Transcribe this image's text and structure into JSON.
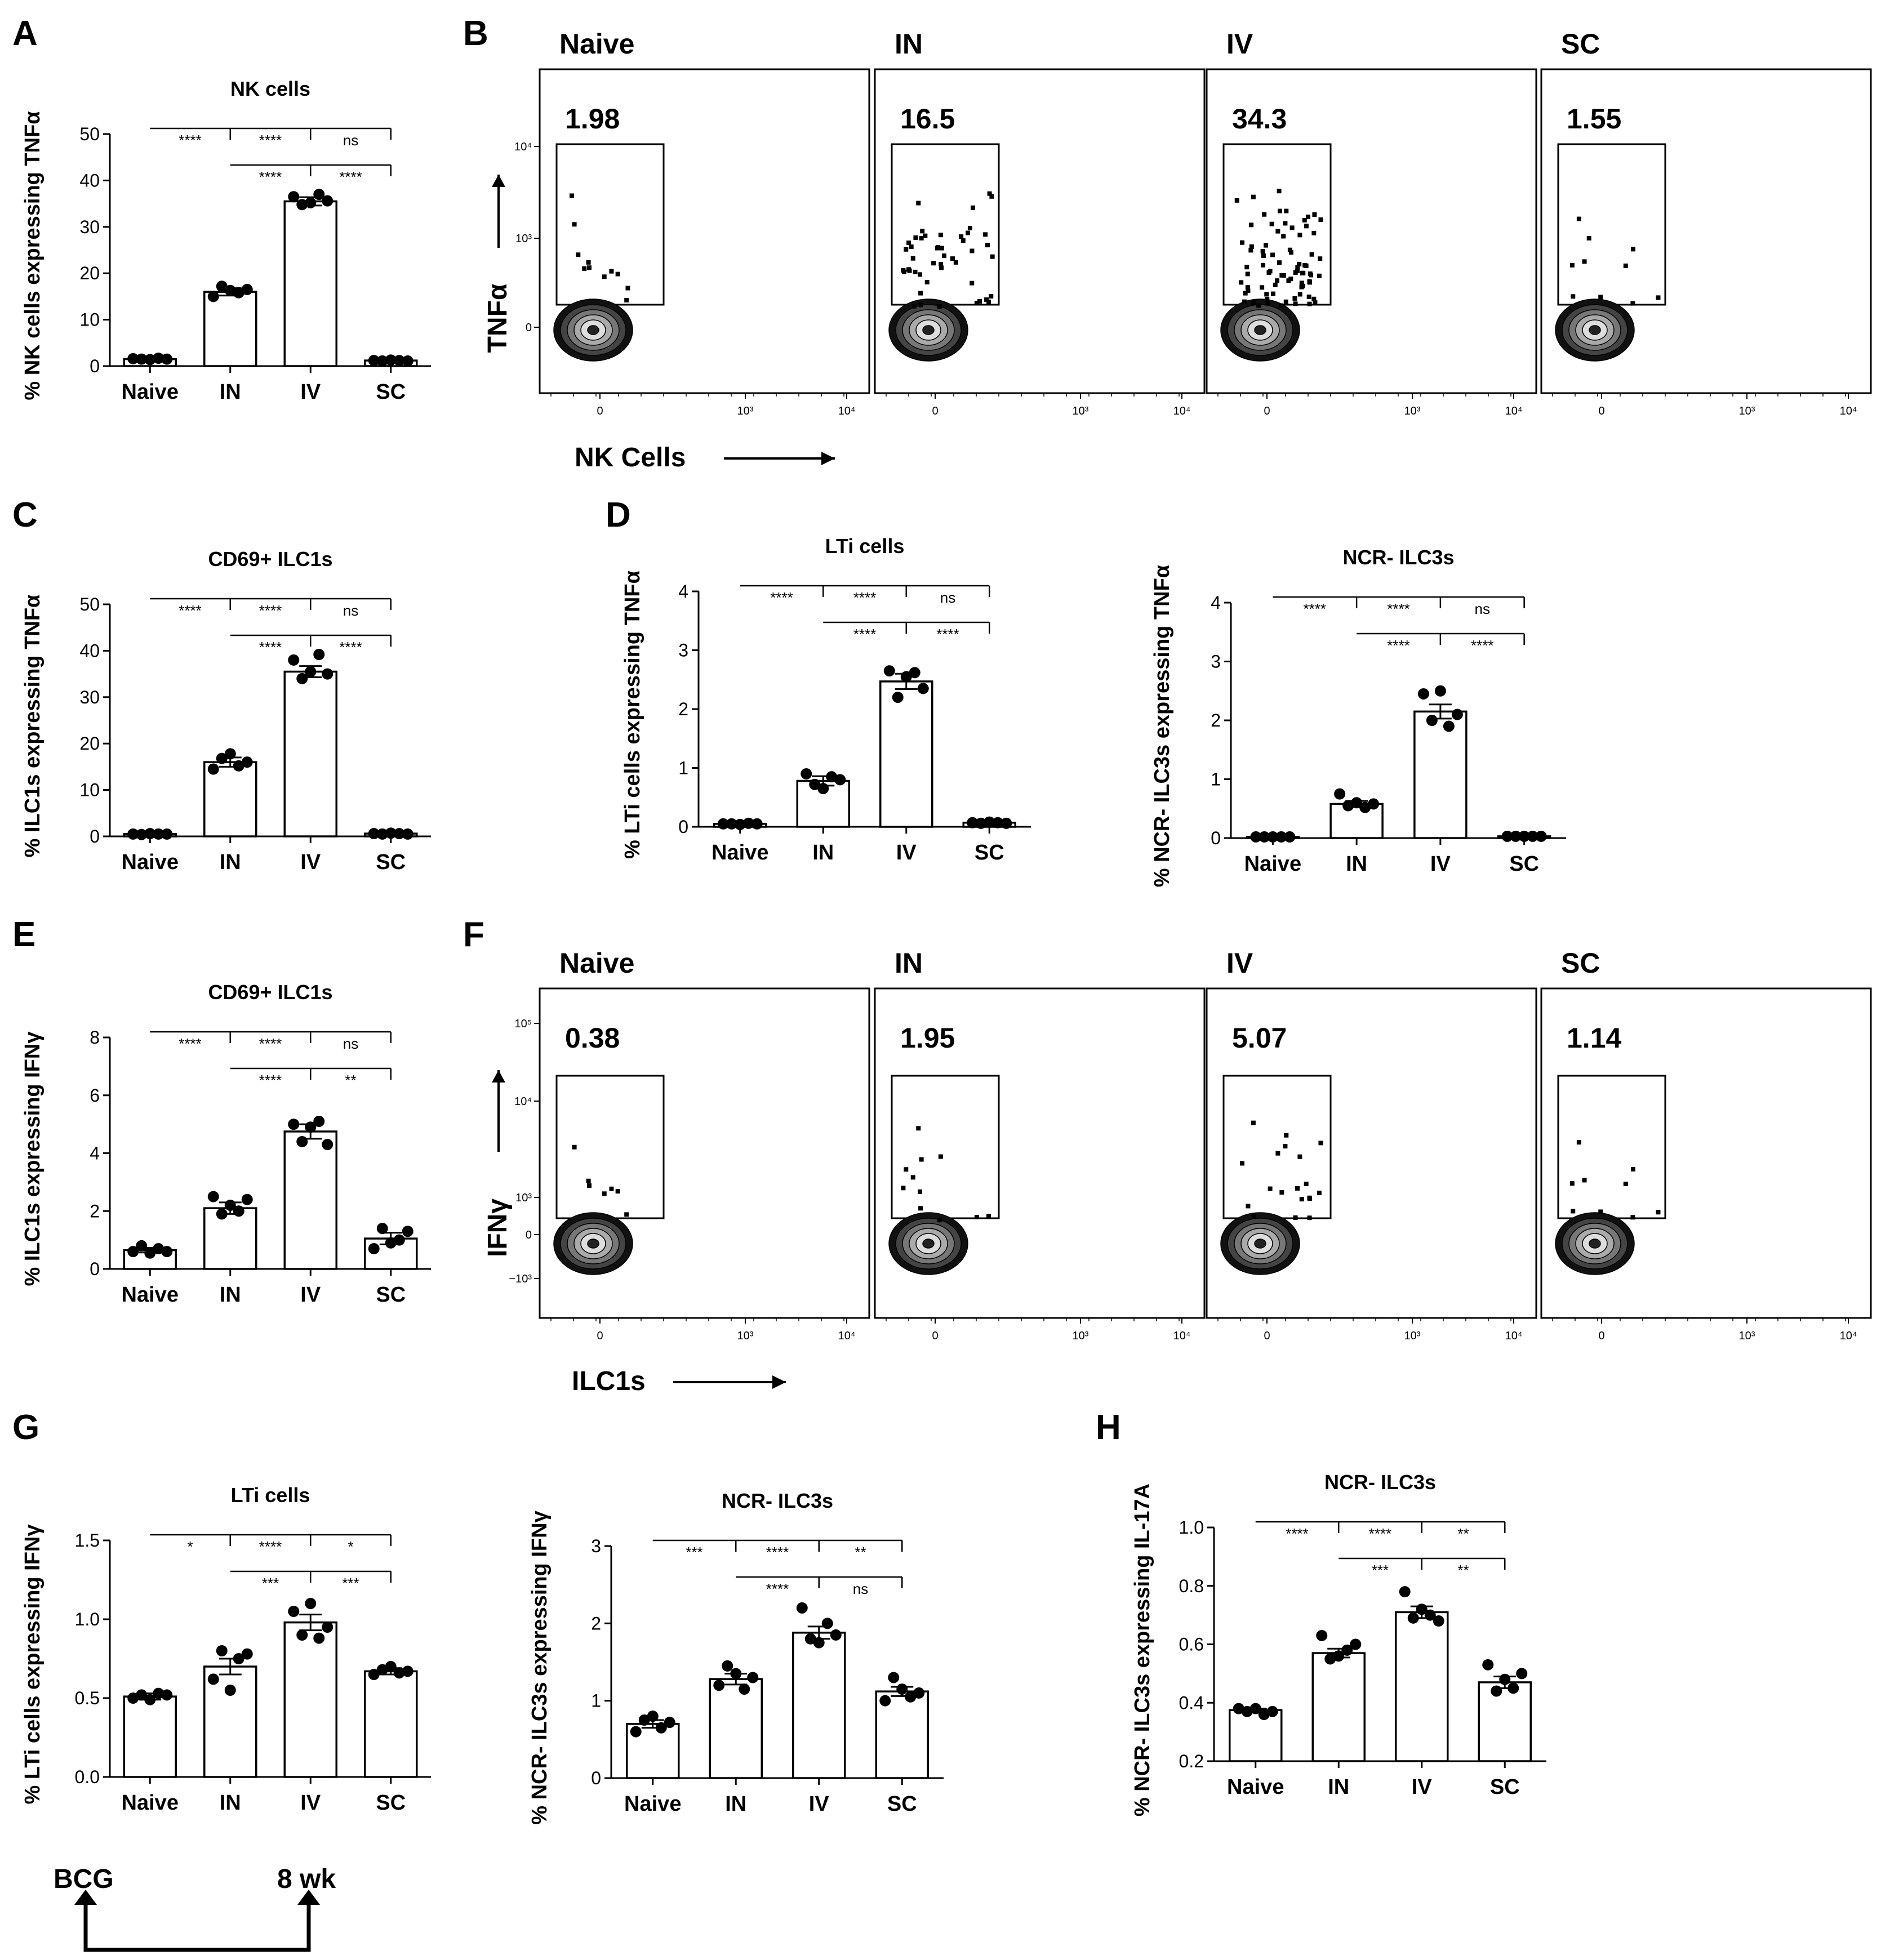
{
  "panels": {
    "A": "A",
    "B": "B",
    "C": "C",
    "D": "D",
    "E": "E",
    "F": "F",
    "G": "G",
    "H": "H"
  },
  "chart_data": [
    {
      "id": "A",
      "type": "bar",
      "title": "NK cells",
      "ylabel": "% NK cells expressing TNFα",
      "categories": [
        "Naive",
        "IN",
        "IV",
        "SC"
      ],
      "values": [
        1.5,
        16.0,
        35.5,
        1.2
      ],
      "sem": [
        0.2,
        0.8,
        0.9,
        0.1
      ],
      "points": [
        [
          1.6,
          1.5,
          1.4,
          1.7,
          1.5
        ],
        [
          15.0,
          17.2,
          16.3,
          15.8,
          16.5
        ],
        [
          36.5,
          34.8,
          35.2,
          37.0,
          35.6
        ],
        [
          1.2,
          1.1,
          1.3,
          1.2,
          1.1
        ]
      ],
      "ylim": [
        0,
        50
      ],
      "yticks": [
        "0",
        "10",
        "20",
        "30",
        "40",
        "50"
      ],
      "significance": [
        {
          "from": 0,
          "to": 3,
          "labels": [
            "****",
            "****",
            "ns"
          ]
        },
        {
          "from": 1,
          "to": 3,
          "labels": [
            "****",
            "****"
          ]
        }
      ]
    },
    {
      "id": "C",
      "type": "bar",
      "title": "CD69+ ILC1s",
      "ylabel": "% ILC1s expressing TNFα",
      "categories": [
        "Naive",
        "IN",
        "IV",
        "SC"
      ],
      "values": [
        0.5,
        16.0,
        35.5,
        0.6
      ],
      "sem": [
        0.1,
        1.0,
        1.2,
        0.1
      ],
      "points": [
        [
          0.5,
          0.4,
          0.6,
          0.5,
          0.5
        ],
        [
          14.5,
          16.8,
          17.8,
          15.2,
          16.0
        ],
        [
          38.0,
          34.0,
          35.5,
          39.2,
          35.0
        ],
        [
          0.6,
          0.5,
          0.7,
          0.6,
          0.5
        ]
      ],
      "ylim": [
        0,
        50
      ],
      "yticks": [
        "0",
        "10",
        "20",
        "30",
        "40",
        "50"
      ],
      "significance": [
        {
          "from": 0,
          "to": 3,
          "labels": [
            "****",
            "****",
            "ns"
          ]
        },
        {
          "from": 1,
          "to": 3,
          "labels": [
            "****",
            "****"
          ]
        }
      ]
    },
    {
      "id": "D1",
      "type": "bar",
      "title": "LTi cells",
      "ylabel": "% LTi cells expressing TNFα",
      "categories": [
        "Naive",
        "IN",
        "IV",
        "SC"
      ],
      "values": [
        0.05,
        0.78,
        2.47,
        0.07
      ],
      "sem": [
        0.01,
        0.08,
        0.13,
        0.01
      ],
      "points": [
        [
          0.05,
          0.05,
          0.04,
          0.06,
          0.05
        ],
        [
          0.9,
          0.72,
          0.65,
          0.85,
          0.8
        ],
        [
          2.65,
          2.2,
          2.55,
          2.62,
          2.35
        ],
        [
          0.07,
          0.06,
          0.08,
          0.07,
          0.06
        ]
      ],
      "ylim": [
        0,
        4
      ],
      "yticks": [
        "0",
        "1",
        "2",
        "3",
        "4"
      ],
      "significance": [
        {
          "from": 0,
          "to": 3,
          "labels": [
            "****",
            "****",
            "ns"
          ]
        },
        {
          "from": 1,
          "to": 3,
          "labels": [
            "****",
            "****"
          ]
        }
      ]
    },
    {
      "id": "D2",
      "type": "bar",
      "title": "NCR- ILC3s",
      "ylabel": "% NCR- ILC3s expressing TNFα",
      "categories": [
        "Naive",
        "IN",
        "IV",
        "SC"
      ],
      "values": [
        0.02,
        0.58,
        2.15,
        0.03
      ],
      "sem": [
        0.01,
        0.05,
        0.12,
        0.01
      ],
      "points": [
        [
          0.02,
          0.02,
          0.02,
          0.02,
          0.02
        ],
        [
          0.75,
          0.55,
          0.6,
          0.52,
          0.58
        ],
        [
          2.45,
          2.0,
          2.5,
          1.9,
          2.1
        ],
        [
          0.03,
          0.03,
          0.03,
          0.03,
          0.03
        ]
      ],
      "ylim": [
        0,
        4
      ],
      "yticks": [
        "0",
        "1",
        "2",
        "3",
        "4"
      ],
      "significance": [
        {
          "from": 0,
          "to": 3,
          "labels": [
            "****",
            "****",
            "ns"
          ]
        },
        {
          "from": 1,
          "to": 3,
          "labels": [
            "****",
            "****"
          ]
        }
      ]
    },
    {
      "id": "E",
      "type": "bar",
      "title": "CD69+ ILC1s",
      "ylabel": "% ILC1s expressing IFNγ",
      "categories": [
        "Naive",
        "IN",
        "IV",
        "SC"
      ],
      "values": [
        0.65,
        2.1,
        4.75,
        1.05
      ],
      "sem": [
        0.08,
        0.2,
        0.25,
        0.2
      ],
      "points": [
        [
          0.6,
          0.8,
          0.55,
          0.7,
          0.6
        ],
        [
          2.5,
          1.9,
          2.2,
          2.0,
          2.4
        ],
        [
          5.0,
          4.4,
          4.9,
          5.1,
          4.3
        ],
        [
          0.7,
          1.4,
          0.9,
          1.0,
          1.3
        ]
      ],
      "ylim": [
        0,
        8
      ],
      "yticks": [
        "0",
        "2",
        "4",
        "6",
        "8"
      ],
      "significance": [
        {
          "from": 0,
          "to": 3,
          "labels": [
            "****",
            "****",
            "ns"
          ]
        },
        {
          "from": 1,
          "to": 3,
          "labels": [
            "****",
            "**"
          ]
        }
      ]
    },
    {
      "id": "G1",
      "type": "bar",
      "title": "LTi cells",
      "ylabel": "% LTi cells expressing IFNγ",
      "categories": [
        "Naive",
        "IN",
        "IV",
        "SC"
      ],
      "values": [
        0.51,
        0.7,
        0.98,
        0.67
      ],
      "sem": [
        0.02,
        0.05,
        0.05,
        0.02
      ],
      "points": [
        [
          0.5,
          0.52,
          0.49,
          0.53,
          0.52
        ],
        [
          0.62,
          0.8,
          0.55,
          0.75,
          0.78
        ],
        [
          1.05,
          0.9,
          1.1,
          0.88,
          0.95
        ],
        [
          0.65,
          0.68,
          0.7,
          0.66,
          0.67
        ]
      ],
      "ylim": [
        0,
        1.5
      ],
      "yticks": [
        "0.0",
        "0.5",
        "1.0",
        "1.5"
      ],
      "significance": [
        {
          "from": 0,
          "to": 3,
          "labels": [
            "*",
            "****",
            "*"
          ]
        },
        {
          "from": 1,
          "to": 3,
          "labels": [
            "***",
            "***"
          ]
        }
      ]
    },
    {
      "id": "G2",
      "type": "bar",
      "title": "NCR- ILC3s",
      "ylabel": "% NCR- ILC3s expressing IFNγ",
      "categories": [
        "Naive",
        "IN",
        "IV",
        "SC"
      ],
      "values": [
        0.7,
        1.28,
        1.88,
        1.12
      ],
      "sem": [
        0.05,
        0.07,
        0.08,
        0.06
      ],
      "points": [
        [
          0.6,
          0.75,
          0.8,
          0.65,
          0.72
        ],
        [
          1.2,
          1.45,
          1.35,
          1.15,
          1.3
        ],
        [
          2.2,
          1.8,
          1.75,
          2.0,
          1.85
        ],
        [
          1.0,
          1.3,
          1.15,
          1.05,
          1.1
        ]
      ],
      "ylim": [
        0,
        3
      ],
      "yticks": [
        "0",
        "1",
        "2",
        "3"
      ],
      "significance": [
        {
          "from": 0,
          "to": 3,
          "labels": [
            "***",
            "****",
            "**"
          ]
        },
        {
          "from": 1,
          "to": 3,
          "labels": [
            "****",
            "ns"
          ]
        }
      ]
    },
    {
      "id": "H",
      "type": "bar",
      "title": "NCR- ILC3s",
      "ylabel": "% NCR- ILC3s expressing IL-17A",
      "categories": [
        "Naive",
        "IN",
        "IV",
        "SC"
      ],
      "values": [
        0.375,
        0.57,
        0.71,
        0.47
      ],
      "sem": [
        0.005,
        0.015,
        0.02,
        0.02
      ],
      "points": [
        [
          0.38,
          0.37,
          0.38,
          0.36,
          0.37
        ],
        [
          0.63,
          0.55,
          0.56,
          0.58,
          0.6
        ],
        [
          0.78,
          0.69,
          0.72,
          0.7,
          0.68
        ],
        [
          0.53,
          0.44,
          0.48,
          0.45,
          0.5
        ]
      ],
      "ylim": [
        0.2,
        1.0
      ],
      "yticks": [
        "0.2",
        "0.4",
        "0.6",
        "0.8",
        "1.0"
      ],
      "significance": [
        {
          "from": 0,
          "to": 3,
          "labels": [
            "****",
            "****",
            "**"
          ]
        },
        {
          "from": 1,
          "to": 3,
          "labels": [
            "***",
            "**"
          ]
        }
      ]
    }
  ],
  "flow_B": {
    "y_axis": "TNFα",
    "x_axis": "NK Cells",
    "ticks_y": [
      "10⁴",
      "10³",
      "0"
    ],
    "ticks_x": [
      "0",
      "10³",
      "10⁴"
    ],
    "samples": [
      {
        "label": "Naive",
        "value": "1.98"
      },
      {
        "label": "IN",
        "value": "16.5"
      },
      {
        "label": "IV",
        "value": "34.3"
      },
      {
        "label": "SC",
        "value": "1.55"
      }
    ]
  },
  "flow_F": {
    "y_axis": "IFNγ",
    "x_axis": "ILC1s",
    "ticks_y": [
      "10⁵",
      "10⁴",
      "10³",
      "0",
      "−10³"
    ],
    "ticks_x": [
      "0",
      "10³",
      "10⁴"
    ],
    "samples": [
      {
        "label": "Naive",
        "value": "0.38"
      },
      {
        "label": "IN",
        "value": "1.95"
      },
      {
        "label": "IV",
        "value": "5.07"
      },
      {
        "label": "SC",
        "value": "1.14"
      }
    ]
  },
  "timeline": {
    "start": "BCG",
    "end": "8 wk"
  },
  "colors": {
    "ink": "#000000",
    "bar_fill": "#ffffff",
    "flow_dark": "#1a1a1a",
    "flow_light": "#f0f0f0"
  }
}
